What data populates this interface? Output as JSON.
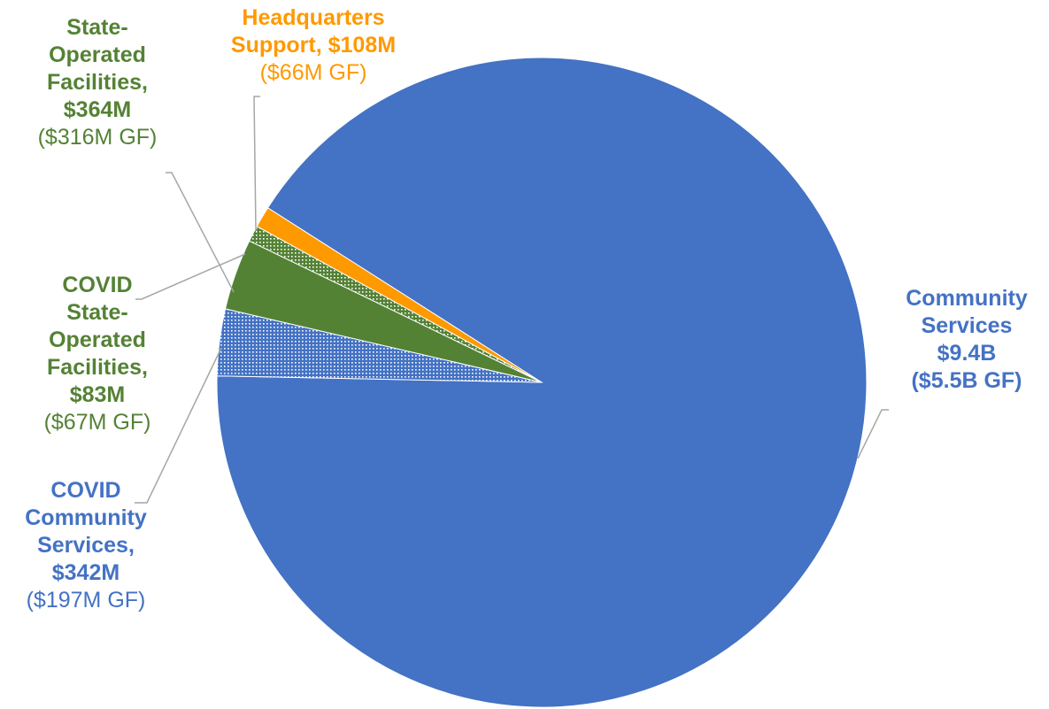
{
  "chart_data": {
    "type": "pie",
    "colors": {
      "blue": "#4472C4",
      "green": "#548235",
      "orange": "#FF9900",
      "leader": "#A6A6A6"
    },
    "slices": [
      {
        "key": "community",
        "value": 9.4,
        "unit": "B",
        "fill": "solid",
        "color": "#4472C4",
        "label": [
          "Community",
          "Services",
          "$9.4B",
          "($5.5B GF)"
        ]
      },
      {
        "key": "covid_community",
        "value": 0.342,
        "unit": "B",
        "fill": "dotted",
        "color": "#4472C4",
        "label": [
          "COVID",
          "Community",
          "Services,",
          "$342M",
          "($197M GF)"
        ]
      },
      {
        "key": "state_operated",
        "value": 0.364,
        "unit": "B",
        "fill": "solid",
        "color": "#548235",
        "label": [
          "State-",
          "Operated",
          "Facilities,",
          "$364M",
          "($316M GF)"
        ]
      },
      {
        "key": "covid_state",
        "value": 0.083,
        "unit": "B",
        "fill": "dotted",
        "color": "#548235",
        "label": [
          "COVID",
          "State-",
          "Operated",
          "Facilities,",
          "$83M",
          "($67M GF)"
        ]
      },
      {
        "key": "headquarters",
        "value": 0.108,
        "unit": "B",
        "fill": "solid",
        "color": "#FF9900",
        "label": [
          "Headquarters",
          "Support, $108M",
          "($66M GF)"
        ]
      }
    ]
  }
}
